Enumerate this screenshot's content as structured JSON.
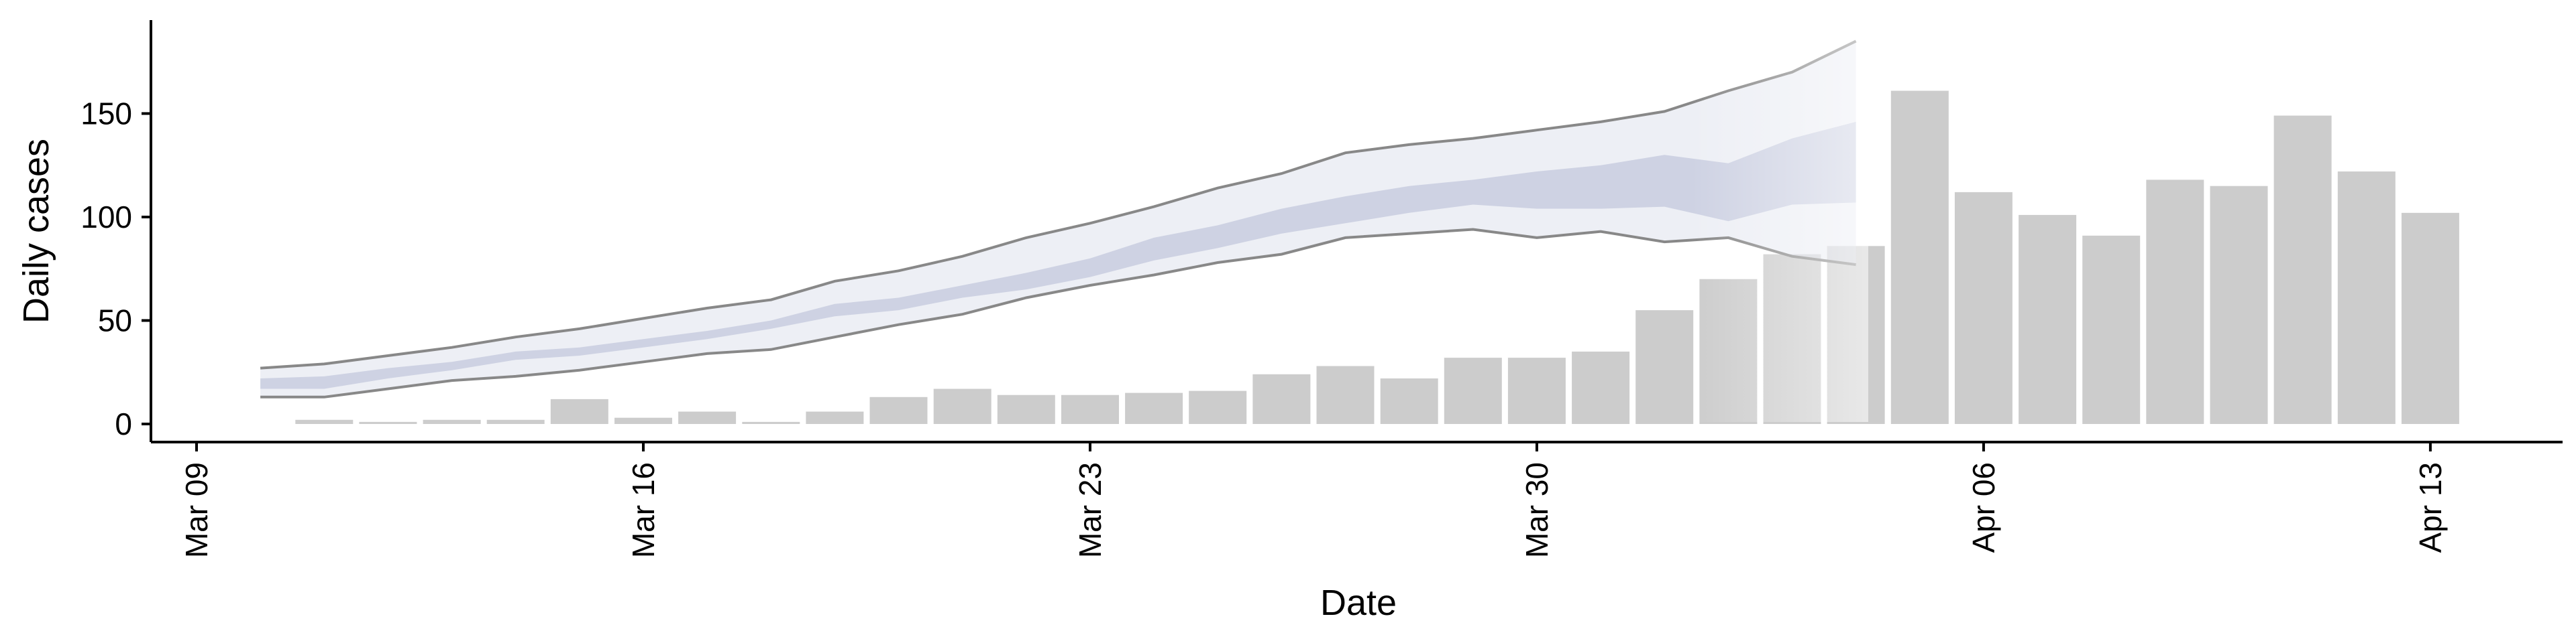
{
  "chart_data": {
    "type": "bar",
    "title": "",
    "xlabel": "Date",
    "ylabel": "Daily cases",
    "ylim": [
      -8,
      195
    ],
    "xlim": [
      "2020-03-09",
      "2020-04-14"
    ],
    "grid": false,
    "legend": "none",
    "x_ticks": [
      {
        "date": "2020-03-09",
        "label": "Mar 09"
      },
      {
        "date": "2020-03-16",
        "label": "Mar 16"
      },
      {
        "date": "2020-03-23",
        "label": "Mar 23"
      },
      {
        "date": "2020-03-30",
        "label": "Mar 30"
      },
      {
        "date": "2020-04-06",
        "label": "Apr 06"
      },
      {
        "date": "2020-04-13",
        "label": "Apr 13"
      }
    ],
    "y_ticks": [
      0,
      50,
      100,
      150
    ],
    "bar_color": "#cccccc",
    "bars": {
      "dates": [
        "2020-03-11",
        "2020-03-12",
        "2020-03-13",
        "2020-03-14",
        "2020-03-15",
        "2020-03-16",
        "2020-03-17",
        "2020-03-18",
        "2020-03-19",
        "2020-03-20",
        "2020-03-21",
        "2020-03-22",
        "2020-03-23",
        "2020-03-24",
        "2020-03-25",
        "2020-03-26",
        "2020-03-27",
        "2020-03-28",
        "2020-03-29",
        "2020-03-30",
        "2020-03-31",
        "2020-04-01",
        "2020-04-02",
        "2020-04-03",
        "2020-04-04",
        "2020-04-05",
        "2020-04-06",
        "2020-04-07",
        "2020-04-08",
        "2020-04-09",
        "2020-04-10",
        "2020-04-11",
        "2020-04-12",
        "2020-04-13"
      ],
      "values": [
        2,
        1,
        2,
        2,
        12,
        3,
        6,
        1,
        6,
        13,
        17,
        14,
        14,
        15,
        16,
        24,
        28,
        22,
        32,
        32,
        35,
        55,
        70,
        82,
        86,
        161,
        112,
        101,
        91,
        118,
        115,
        149,
        122,
        102
      ]
    },
    "estimate": {
      "dates": [
        "2020-03-10",
        "2020-03-11",
        "2020-03-12",
        "2020-03-13",
        "2020-03-14",
        "2020-03-15",
        "2020-03-16",
        "2020-03-17",
        "2020-03-18",
        "2020-03-19",
        "2020-03-20",
        "2020-03-21",
        "2020-03-22",
        "2020-03-23",
        "2020-03-24",
        "2020-03-25",
        "2020-03-26",
        "2020-03-27",
        "2020-03-28",
        "2020-03-29",
        "2020-03-30",
        "2020-03-31",
        "2020-04-01",
        "2020-04-02",
        "2020-04-03",
        "2020-04-04"
      ],
      "outer_low": [
        13,
        13,
        17,
        21,
        23,
        26,
        30,
        34,
        36,
        42,
        48,
        53,
        61,
        67,
        72,
        78,
        82,
        90,
        92,
        94,
        90,
        93,
        88,
        90,
        81,
        77
      ],
      "outer_high": [
        27,
        29,
        33,
        37,
        42,
        46,
        51,
        56,
        60,
        69,
        74,
        81,
        90,
        97,
        105,
        114,
        121,
        131,
        135,
        138,
        142,
        146,
        151,
        161,
        170,
        185
      ],
      "inner_low": [
        17,
        17,
        22,
        26,
        31,
        33,
        37,
        41,
        46,
        52,
        55,
        61,
        65,
        71,
        79,
        85,
        92,
        97,
        102,
        106,
        104,
        104,
        105,
        98,
        106,
        107
      ],
      "inner_high": [
        22,
        23,
        27,
        30,
        35,
        37,
        41,
        45,
        50,
        58,
        61,
        67,
        73,
        80,
        90,
        96,
        104,
        110,
        115,
        118,
        122,
        125,
        130,
        126,
        138,
        146
      ],
      "outer_color": "#d8dbe8",
      "inner_color": "#c3c8dc",
      "line_color": "#888888"
    }
  }
}
